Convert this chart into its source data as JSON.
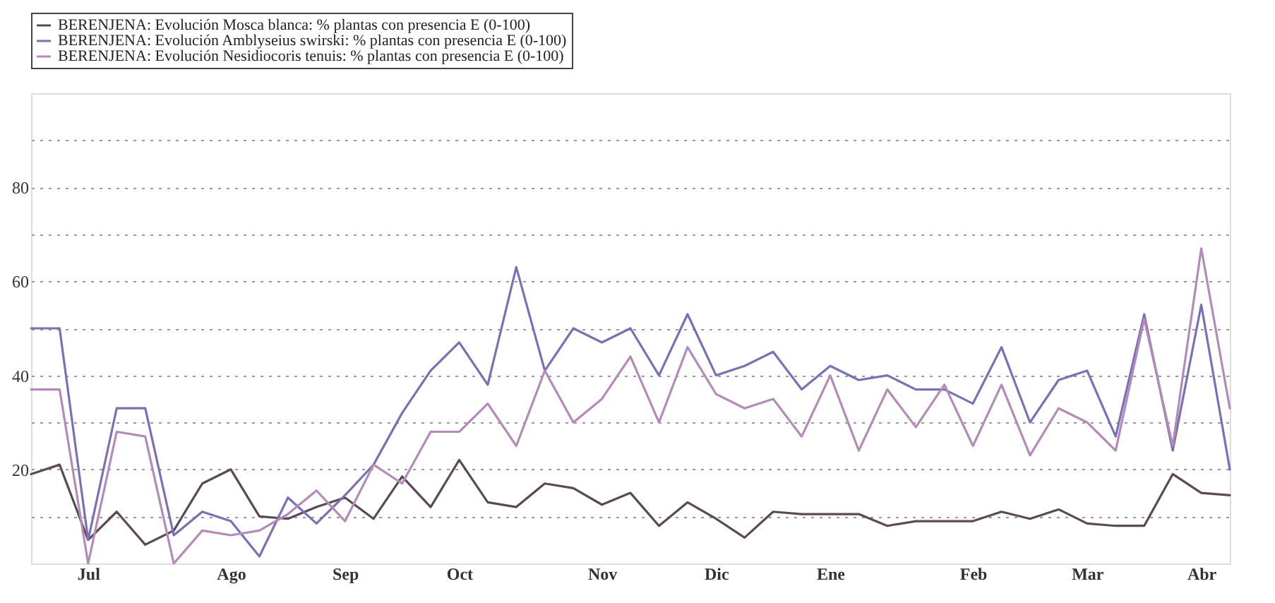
{
  "chart_data": {
    "type": "line",
    "categories": [
      null,
      null,
      "Jul",
      null,
      null,
      null,
      null,
      "Ago",
      null,
      null,
      null,
      "Sep",
      null,
      null,
      null,
      "Oct",
      null,
      null,
      null,
      null,
      "Nov",
      null,
      null,
      null,
      "Dic",
      null,
      null,
      null,
      "Ene",
      null,
      null,
      null,
      null,
      "Feb",
      null,
      null,
      null,
      "Mar",
      null,
      null,
      null,
      "Abr",
      null
    ],
    "series": [
      {
        "name": "BERENJENA: Evolución Mosca blanca: % plantas con presencia E (0-100)",
        "color": "#5a4a55",
        "values": [
          19,
          21,
          5,
          11,
          4,
          7,
          17,
          20,
          10,
          9.5,
          12,
          14,
          9.5,
          18.5,
          12,
          22,
          13,
          12,
          17,
          16,
          12.5,
          15,
          8,
          13,
          9.5,
          5.5,
          11,
          10.5,
          10.5,
          10.5,
          8,
          9,
          9,
          9,
          11,
          9.5,
          11.5,
          8.5,
          8,
          8,
          19,
          15,
          14.5
        ]
      },
      {
        "name": "BERENJENA: Evolución Amblyseius swirski: % plantas con presencia E (0-100)",
        "color": "#7b6fb5",
        "values": [
          50,
          50,
          5,
          33,
          33,
          6,
          11,
          9,
          1.5,
          14,
          8.5,
          14.5,
          21,
          32,
          41,
          47,
          38,
          63,
          41,
          50,
          47,
          50,
          40,
          53,
          40,
          42,
          45,
          37,
          42,
          39,
          40,
          37,
          37,
          34,
          46,
          30,
          39,
          41,
          27,
          53,
          24,
          55,
          20
        ]
      },
      {
        "name": "BERENJENA: Evolución Nesidiocoris tenuis: % plantas con presencia E (0-100)",
        "color": "#b48ab8",
        "values": [
          37,
          37,
          0,
          28,
          27,
          0,
          7,
          6,
          7,
          10.5,
          15.5,
          9,
          21,
          17,
          28,
          28,
          34,
          25,
          41,
          30,
          35,
          44,
          30,
          46,
          36,
          33,
          35,
          27,
          40,
          24,
          37,
          29,
          38,
          25,
          38,
          23,
          33,
          30,
          24,
          52,
          25,
          67,
          33
        ]
      }
    ],
    "ylim": [
      0,
      100
    ],
    "yticks": [
      {
        "value": 10,
        "label": null
      },
      20,
      {
        "value": 30,
        "label": null
      },
      40,
      {
        "value": 50,
        "label": null
      },
      60,
      {
        "value": 70,
        "label": null
      },
      80,
      {
        "value": 90,
        "label": null
      }
    ],
    "grid": "y",
    "legend": "top",
    "line_style": "solid"
  }
}
